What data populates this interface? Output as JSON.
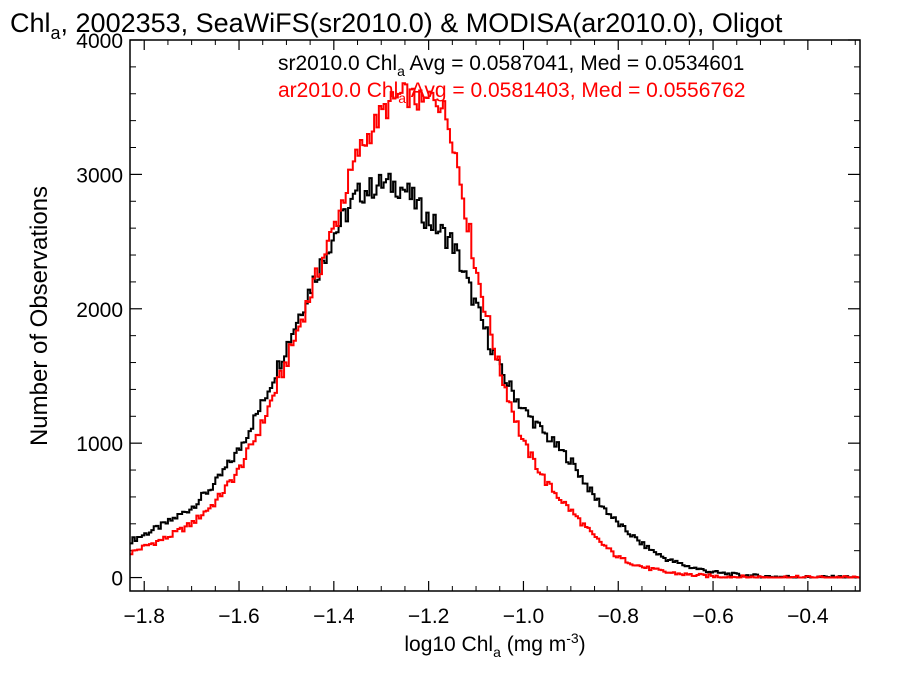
{
  "chart_data": {
    "type": "line",
    "title": {
      "pre": "Chl",
      "sub": "a",
      "post": ", 2002353, SeaWiFS(sr2010.0) & MODISA(ar2010.0), Oligot"
    },
    "xlabel": {
      "pre": "log10 Chl",
      "sub": "a",
      "mid": " (mg m",
      "sup": "-3",
      "post": ")"
    },
    "ylabel": "Number of Observations",
    "xlim": [
      -1.83,
      -0.29
    ],
    "ylim": [
      -100,
      4000
    ],
    "x_ticks": [
      {
        "value": -1.8,
        "label": "−1.8"
      },
      {
        "value": -1.6,
        "label": "−1.6"
      },
      {
        "value": -1.4,
        "label": "−1.4"
      },
      {
        "value": -1.2,
        "label": "−1.2"
      },
      {
        "value": -1.0,
        "label": "−1.0"
      },
      {
        "value": -0.8,
        "label": "−0.8"
      },
      {
        "value": -0.6,
        "label": "−0.6"
      },
      {
        "value": -0.4,
        "label": "−0.4"
      }
    ],
    "y_ticks": [
      {
        "value": 0,
        "label": "0"
      },
      {
        "value": 1000,
        "label": "1000"
      },
      {
        "value": 2000,
        "label": "2000"
      },
      {
        "value": 3000,
        "label": "3000"
      },
      {
        "value": 4000,
        "label": "4000"
      }
    ],
    "x": [
      -1.83,
      -1.8,
      -1.75,
      -1.7,
      -1.65,
      -1.6,
      -1.55,
      -1.5,
      -1.45,
      -1.4,
      -1.35,
      -1.3,
      -1.27,
      -1.25,
      -1.23,
      -1.21,
      -1.19,
      -1.17,
      -1.15,
      -1.1,
      -1.05,
      -1.0,
      -0.95,
      -0.9,
      -0.85,
      -0.8,
      -0.75,
      -0.7,
      -0.65,
      -0.6,
      -0.55,
      -0.5,
      -0.45,
      -0.4,
      -0.35,
      -0.3
    ],
    "series": [
      {
        "name": "",
        "color": "#000000",
        "legend": {
          "pre": "sr2010.0 Chl",
          "sub": "a",
          "post": " Avg = 0.0587041, Med = 0.0534601"
        },
        "values": [
          270,
          320,
          410,
          520,
          700,
          950,
          1300,
          1720,
          2150,
          2550,
          2850,
          2930,
          2920,
          2890,
          2800,
          2700,
          2630,
          2560,
          2500,
          2020,
          1550,
          1250,
          1050,
          870,
          600,
          400,
          250,
          140,
          80,
          40,
          20,
          10,
          5,
          3,
          2,
          1
        ]
      },
      {
        "name": "",
        "color": "#ff0000",
        "legend": {
          "pre": "ar2010.0 Chl",
          "sub": "a",
          "post": " Avg = 0.0581403, Med = 0.0556762"
        },
        "values": [
          180,
          230,
          300,
          400,
          560,
          800,
          1150,
          1600,
          2100,
          2600,
          3150,
          3450,
          3560,
          3600,
          3560,
          3520,
          3600,
          3500,
          3300,
          2300,
          1550,
          1000,
          700,
          500,
          300,
          150,
          80,
          40,
          20,
          10,
          5,
          3,
          2,
          1,
          1,
          0
        ]
      }
    ]
  }
}
